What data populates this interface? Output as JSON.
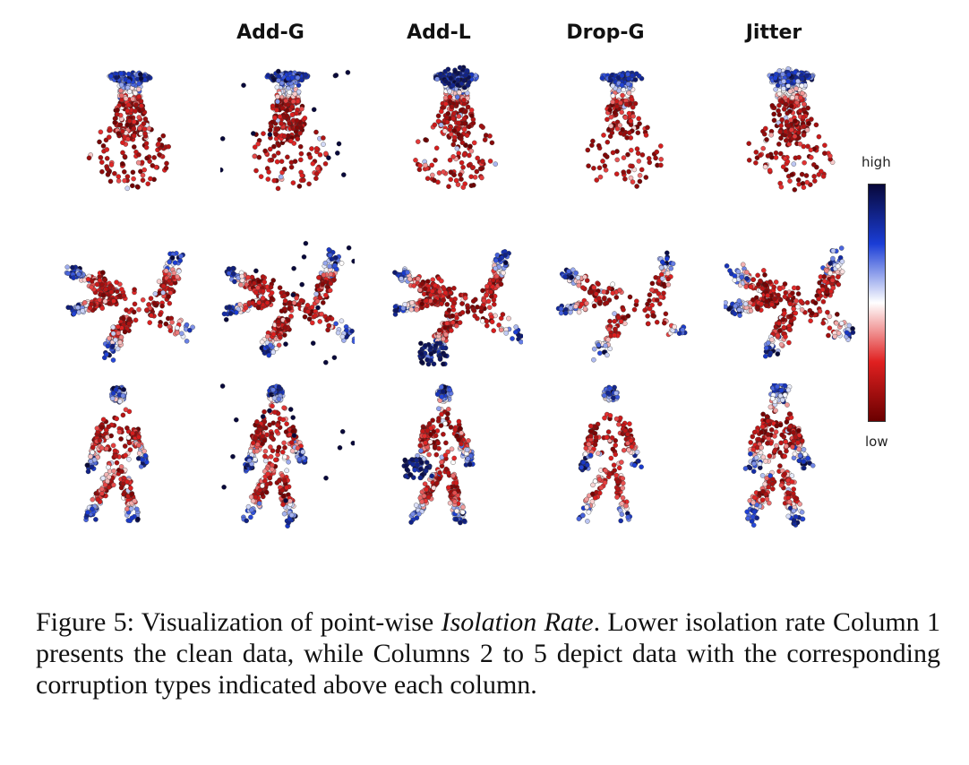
{
  "column_titles": [
    "Add-G",
    "Add-L",
    "Drop-G",
    "Jitter"
  ],
  "colorbar": {
    "high_label": "high",
    "low_label": "low",
    "colors": [
      "#08083a",
      "#1a3dd6",
      "#ffffff",
      "#e02020",
      "#6a0000"
    ]
  },
  "rows": [
    "vase",
    "airplane",
    "person"
  ],
  "columns": [
    "clean",
    "Add-G",
    "Add-L",
    "Drop-G",
    "Jitter"
  ],
  "caption": {
    "prefix": "Figure 5: Visualization of point-wise ",
    "emphasis": "Isolation Rate",
    "suffix": ". Lower isolation rate Column 1 presents the clean data, while Columns 2 to 5 depict data with the corresponding corruption types indicated above each column."
  }
}
